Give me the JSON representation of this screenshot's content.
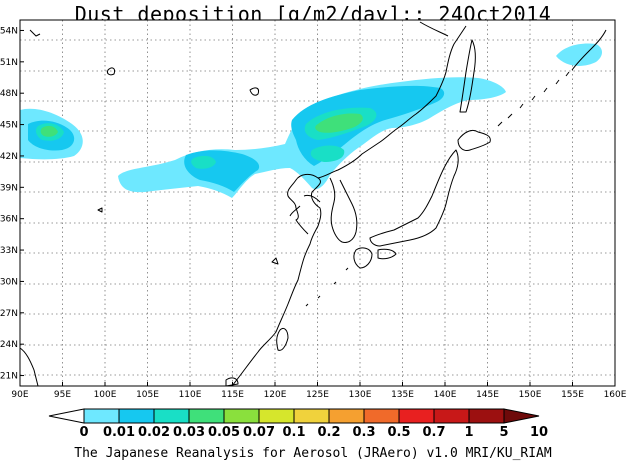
{
  "title": "Dust deposition [g/m2/day]:: 24Oct2014",
  "credit": "The Japanese Reanalysis for Aerosol (JRAero) v1.0 MRI/KU_RIAM",
  "map": {
    "lon_range": [
      90,
      160
    ],
    "lat_range": [
      20,
      55
    ],
    "lon_ticks": [
      "90E",
      "95E",
      "100E",
      "105E",
      "110E",
      "115E",
      "120E",
      "125E",
      "130E",
      "135E",
      "140E",
      "145E",
      "150E",
      "155E",
      "160E"
    ],
    "lat_ticks": [
      "54N",
      "51N",
      "48N",
      "45N",
      "42N",
      "39N",
      "36N",
      "33N",
      "30N",
      "27N",
      "24N",
      "21N"
    ]
  },
  "colorbar": {
    "labels": [
      "0",
      "0.01",
      "0.02",
      "0.03",
      "0.05",
      "0.07",
      "0.1",
      "0.2",
      "0.3",
      "0.5",
      "0.7",
      "1",
      "5",
      "10"
    ],
    "colors": [
      "#ffffff",
      "#6ee8ff",
      "#16c8f0",
      "#19dfc6",
      "#3fe07a",
      "#8ae03d",
      "#d6e62c",
      "#f0d23c",
      "#f5a030",
      "#f06a2a",
      "#e82020",
      "#c81818",
      "#9c1010",
      "#6e0a0a"
    ]
  }
}
